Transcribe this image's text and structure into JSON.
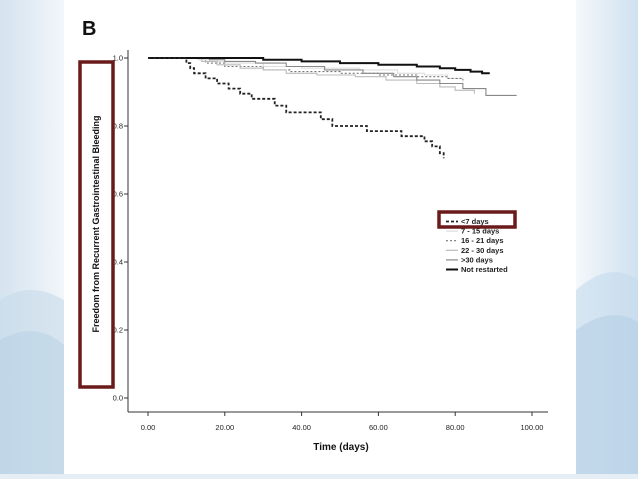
{
  "figure": {
    "panel_label": "B"
  },
  "colors": {
    "highlight_box": "#6b1a1a",
    "background_left": "#dfeaf3",
    "background_right": "#dce9f4"
  },
  "chart_data": {
    "type": "line",
    "title": "",
    "xlabel": "Time (days)",
    "ylabel": "Freedom from Recurrent Gastrointestinal Bleeding",
    "xlim": [
      0,
      100
    ],
    "ylim": [
      0,
      1.0
    ],
    "x_tick_labels": [
      "0.00",
      "20.00",
      "40.00",
      "60.00",
      "80.00",
      "100.00"
    ],
    "x_ticks": [
      0,
      20,
      40,
      60,
      80,
      100
    ],
    "y_tick_labels": [
      "0.0",
      "0.2",
      "0.4",
      "0.6",
      "0.8",
      "1.0"
    ],
    "y_ticks": [
      0,
      0.2,
      0.4,
      0.6,
      0.8,
      1.0
    ],
    "grid": false,
    "legend_placement": "right-center",
    "highlighted": [
      "ylabel",
      "<7 days"
    ],
    "series": [
      {
        "name": "<7 days",
        "style": "dashed",
        "color": "#222222",
        "x": [
          0,
          9,
          10,
          11,
          12,
          15,
          18,
          21,
          24,
          27,
          30,
          33,
          36,
          39,
          42,
          45,
          48,
          51,
          54,
          57,
          60,
          63,
          66,
          69,
          72,
          74,
          76,
          77
        ],
        "y": [
          1.0,
          1.0,
          0.985,
          0.97,
          0.955,
          0.94,
          0.925,
          0.91,
          0.895,
          0.88,
          0.88,
          0.86,
          0.84,
          0.84,
          0.84,
          0.82,
          0.8,
          0.8,
          0.8,
          0.785,
          0.785,
          0.785,
          0.77,
          0.77,
          0.755,
          0.74,
          0.72,
          0.705
        ]
      },
      {
        "name": "7 - 15 days",
        "style": "solid",
        "color": "#dddddd",
        "x": [
          0,
          10,
          13,
          16,
          20,
          30,
          40,
          55,
          65,
          72,
          78,
          82
        ],
        "y": [
          1.0,
          1.0,
          0.995,
          0.99,
          0.985,
          0.975,
          0.97,
          0.965,
          0.955,
          0.95,
          0.94,
          0.93
        ]
      },
      {
        "name": "16 - 21 days",
        "style": "dotted",
        "color": "#777777",
        "x": [
          0,
          10,
          15,
          20,
          30,
          37,
          50,
          60,
          70,
          78,
          82
        ],
        "y": [
          1.0,
          1.0,
          0.985,
          0.975,
          0.965,
          0.96,
          0.955,
          0.95,
          0.945,
          0.94,
          0.935
        ]
      },
      {
        "name": "22 - 30 days",
        "style": "solid",
        "color": "#bbbbbb",
        "x": [
          0,
          11,
          14,
          18,
          24,
          30,
          36,
          44,
          54,
          62,
          70,
          76,
          80,
          85
        ],
        "y": [
          1.0,
          1.0,
          0.99,
          0.98,
          0.97,
          0.965,
          0.955,
          0.95,
          0.945,
          0.935,
          0.925,
          0.915,
          0.905,
          0.895
        ]
      },
      {
        "name": ">30 days",
        "style": "solid",
        "color": "#888888",
        "x": [
          0,
          12,
          16,
          20,
          28,
          36,
          46,
          56,
          64,
          70,
          76,
          82,
          88,
          96
        ],
        "y": [
          1.0,
          1.0,
          0.995,
          0.99,
          0.985,
          0.975,
          0.965,
          0.955,
          0.945,
          0.935,
          0.925,
          0.91,
          0.89,
          0.89
        ]
      },
      {
        "name": "Not restarted",
        "style": "solid",
        "color": "#111111",
        "x": [
          0,
          20,
          30,
          40,
          50,
          60,
          70,
          76,
          80,
          84,
          87,
          89
        ],
        "y": [
          1.0,
          1.0,
          0.995,
          0.99,
          0.985,
          0.98,
          0.975,
          0.97,
          0.965,
          0.96,
          0.955,
          0.955
        ]
      }
    ]
  }
}
